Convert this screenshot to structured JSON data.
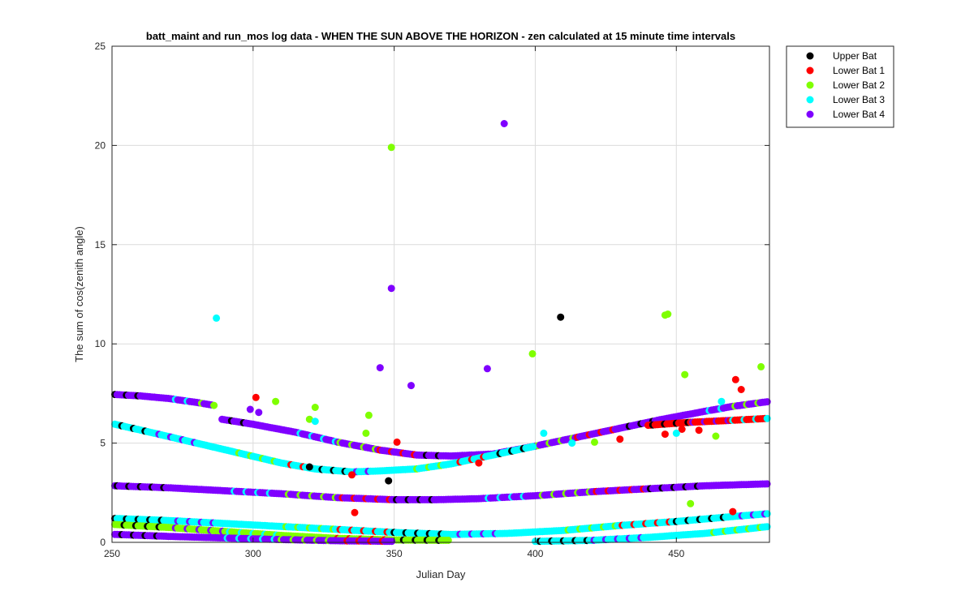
{
  "chart_data": {
    "type": "scatter",
    "title": "batt_maint and run_mos log data - WHEN THE SUN ABOVE THE HORIZON - zen calculated at 15 minute time intervals",
    "xlabel": "Julian Day",
    "ylabel": "The sum of cos(zenith angle)",
    "xlim": [
      250,
      483
    ],
    "ylim": [
      0,
      25
    ],
    "xticks": [
      250,
      300,
      350,
      400,
      450
    ],
    "yticks": [
      0,
      5,
      10,
      15,
      20,
      25
    ],
    "grid": true,
    "legend_position": "outside-top-right",
    "series": [
      {
        "name": "Upper Bat",
        "color": "#000000",
        "points": [
          [
            320,
            3.8
          ],
          [
            348,
            3.1
          ],
          [
            409,
            11.35
          ]
        ]
      },
      {
        "name": "Lower Bat 1",
        "color": "#ff0000",
        "points": [
          [
            301,
            7.3
          ],
          [
            351,
            5.05
          ],
          [
            336,
            1.5
          ],
          [
            452,
            5.7
          ],
          [
            458,
            5.65
          ],
          [
            471,
            8.2
          ],
          [
            473,
            7.7
          ],
          [
            446,
            5.45
          ],
          [
            430,
            5.2
          ],
          [
            470,
            1.55
          ],
          [
            335,
            3.4
          ],
          [
            380,
            4.0
          ]
        ]
      },
      {
        "name": "Lower Bat 2",
        "color": "#7fff00",
        "points": [
          [
            349,
            19.9
          ],
          [
            446,
            11.45
          ],
          [
            447,
            11.5
          ],
          [
            399,
            9.5
          ],
          [
            453,
            8.45
          ],
          [
            480,
            8.85
          ],
          [
            308,
            7.1
          ],
          [
            322,
            6.8
          ],
          [
            320,
            6.2
          ],
          [
            341,
            6.4
          ],
          [
            340,
            5.5
          ],
          [
            455,
            1.95
          ],
          [
            464,
            5.35
          ],
          [
            421,
            5.05
          ]
        ]
      },
      {
        "name": "Lower Bat 3",
        "color": "#00ffff",
        "points": [
          [
            287,
            11.3
          ],
          [
            322,
            6.1
          ],
          [
            403,
            5.5
          ],
          [
            450,
            5.5
          ],
          [
            466,
            7.1
          ],
          [
            413,
            5.0
          ]
        ]
      },
      {
        "name": "Lower Bat 4",
        "color": "#7f00ff",
        "points": [
          [
            389,
            21.1
          ],
          [
            349,
            12.8
          ],
          [
            345,
            8.8
          ],
          [
            383,
            8.75
          ],
          [
            356,
            7.9
          ],
          [
            299,
            6.7
          ],
          [
            302,
            6.55
          ]
        ]
      }
    ],
    "bands": [
      {
        "color": "#7f00ff",
        "points": [
          [
            251,
            7.45
          ],
          [
            260,
            7.38
          ],
          [
            270,
            7.25
          ],
          [
            280,
            7.05
          ],
          [
            287,
            6.88
          ]
        ]
      },
      {
        "color": "#7f00ff",
        "points": [
          [
            289,
            6.2
          ],
          [
            300,
            5.95
          ],
          [
            315,
            5.55
          ],
          [
            330,
            5.05
          ],
          [
            345,
            4.65
          ],
          [
            358,
            4.4
          ],
          [
            370,
            4.35
          ],
          [
            385,
            4.45
          ],
          [
            400,
            4.85
          ],
          [
            415,
            5.3
          ],
          [
            430,
            5.75
          ],
          [
            445,
            6.2
          ],
          [
            460,
            6.6
          ],
          [
            470,
            6.85
          ],
          [
            483,
            7.1
          ]
        ]
      },
      {
        "color": "#00ffff",
        "points": [
          [
            251,
            5.95
          ],
          [
            265,
            5.5
          ],
          [
            280,
            5.0
          ],
          [
            295,
            4.5
          ],
          [
            310,
            4.0
          ],
          [
            322,
            3.7
          ],
          [
            335,
            3.55
          ],
          [
            345,
            3.6
          ],
          [
            358,
            3.7
          ],
          [
            370,
            3.95
          ],
          [
            385,
            4.4
          ],
          [
            400,
            4.85
          ]
        ]
      },
      {
        "color": "#ff0000",
        "points": [
          [
            440,
            5.9
          ],
          [
            455,
            6.05
          ],
          [
            470,
            6.15
          ],
          [
            483,
            6.25
          ]
        ]
      },
      {
        "color": "#7f00ff",
        "points": [
          [
            251,
            2.85
          ],
          [
            270,
            2.75
          ],
          [
            290,
            2.6
          ],
          [
            310,
            2.45
          ],
          [
            330,
            2.25
          ],
          [
            350,
            2.15
          ],
          [
            365,
            2.15
          ],
          [
            380,
            2.2
          ],
          [
            400,
            2.35
          ],
          [
            420,
            2.55
          ],
          [
            440,
            2.7
          ],
          [
            460,
            2.85
          ],
          [
            483,
            2.95
          ]
        ]
      },
      {
        "color": "#00ffff",
        "points": [
          [
            251,
            1.2
          ],
          [
            270,
            1.1
          ],
          [
            290,
            0.95
          ],
          [
            310,
            0.8
          ],
          [
            330,
            0.65
          ],
          [
            350,
            0.5
          ],
          [
            370,
            0.4
          ],
          [
            390,
            0.45
          ],
          [
            410,
            0.6
          ],
          [
            430,
            0.85
          ],
          [
            450,
            1.05
          ],
          [
            470,
            1.3
          ],
          [
            483,
            1.45
          ]
        ]
      },
      {
        "color": "#7fff00",
        "points": [
          [
            251,
            0.9
          ],
          [
            270,
            0.75
          ],
          [
            290,
            0.55
          ],
          [
            310,
            0.35
          ],
          [
            330,
            0.2
          ],
          [
            350,
            0.12
          ],
          [
            370,
            0.1
          ]
        ]
      },
      {
        "color": "#7f00ff",
        "points": [
          [
            251,
            0.4
          ],
          [
            270,
            0.3
          ],
          [
            290,
            0.22
          ],
          [
            310,
            0.14
          ],
          [
            330,
            0.08
          ],
          [
            350,
            0.05
          ]
        ]
      },
      {
        "color": "#00ffff",
        "points": [
          [
            400,
            0.05
          ],
          [
            420,
            0.1
          ],
          [
            440,
            0.25
          ],
          [
            460,
            0.45
          ],
          [
            483,
            0.8
          ]
        ]
      }
    ]
  }
}
